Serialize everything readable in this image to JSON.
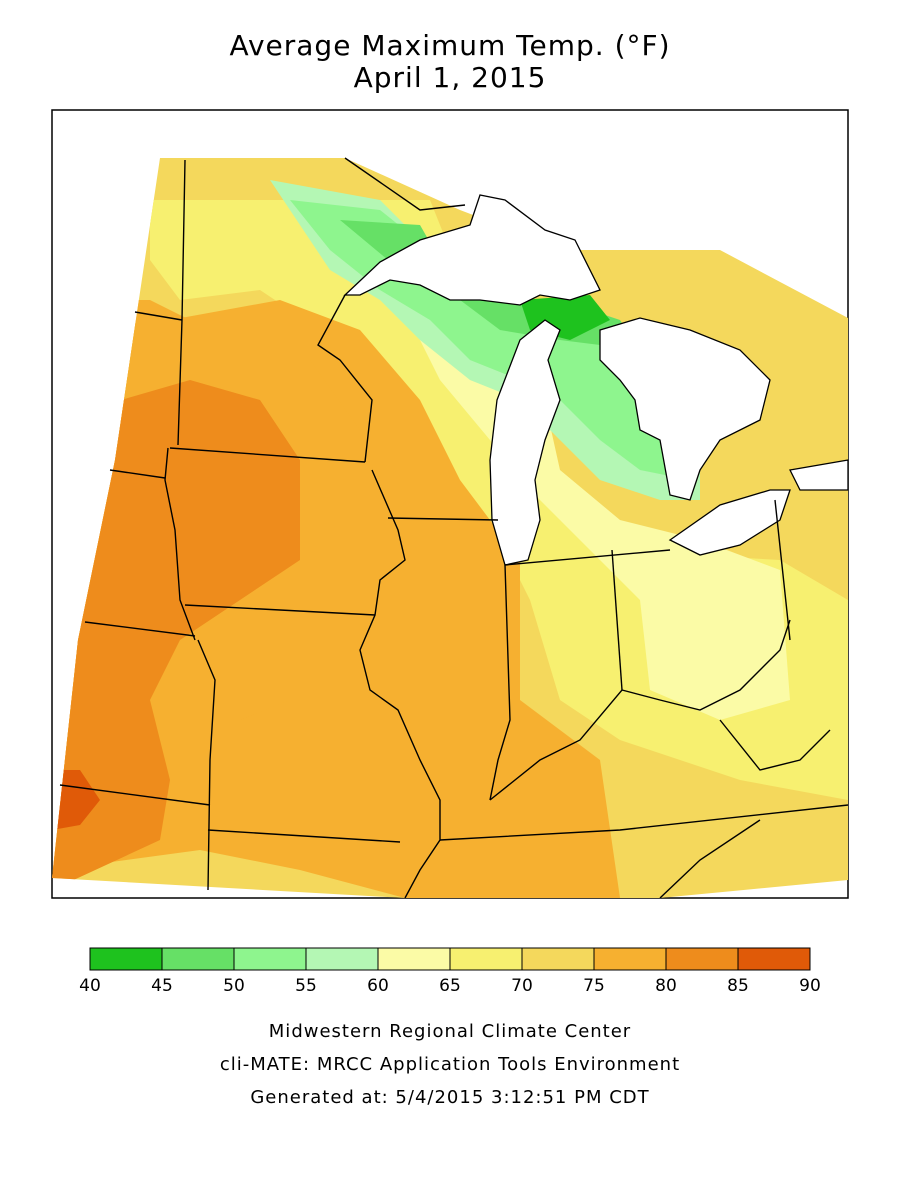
{
  "title": "Average Maximum Temp. (°F)",
  "subtitle": "April 1, 2015",
  "legend": {
    "ticks": [
      "40",
      "45",
      "50",
      "55",
      "60",
      "65",
      "70",
      "75",
      "80",
      "85",
      "90"
    ],
    "colors": [
      "#1ec21e",
      "#66e066",
      "#8ef58e",
      "#b4f7b4",
      "#fbfba6",
      "#f7f070",
      "#f4d85c",
      "#f6b030",
      "#ee8c1c",
      "#e05a08"
    ]
  },
  "footer": {
    "line1": "Midwestern Regional Climate Center",
    "line2": "cli-MATE: MRCC Application Tools Environment",
    "line3": "Generated at: 5/4/2015 3:12:51 PM CDT"
  },
  "map": {
    "water_color": "#ffffff",
    "border_color": "#000000",
    "contour_bands_F": [
      "40-45",
      "45-50",
      "50-55",
      "55-60",
      "60-65",
      "65-70",
      "70-75",
      "75-80",
      "80-85",
      "85-90"
    ]
  }
}
